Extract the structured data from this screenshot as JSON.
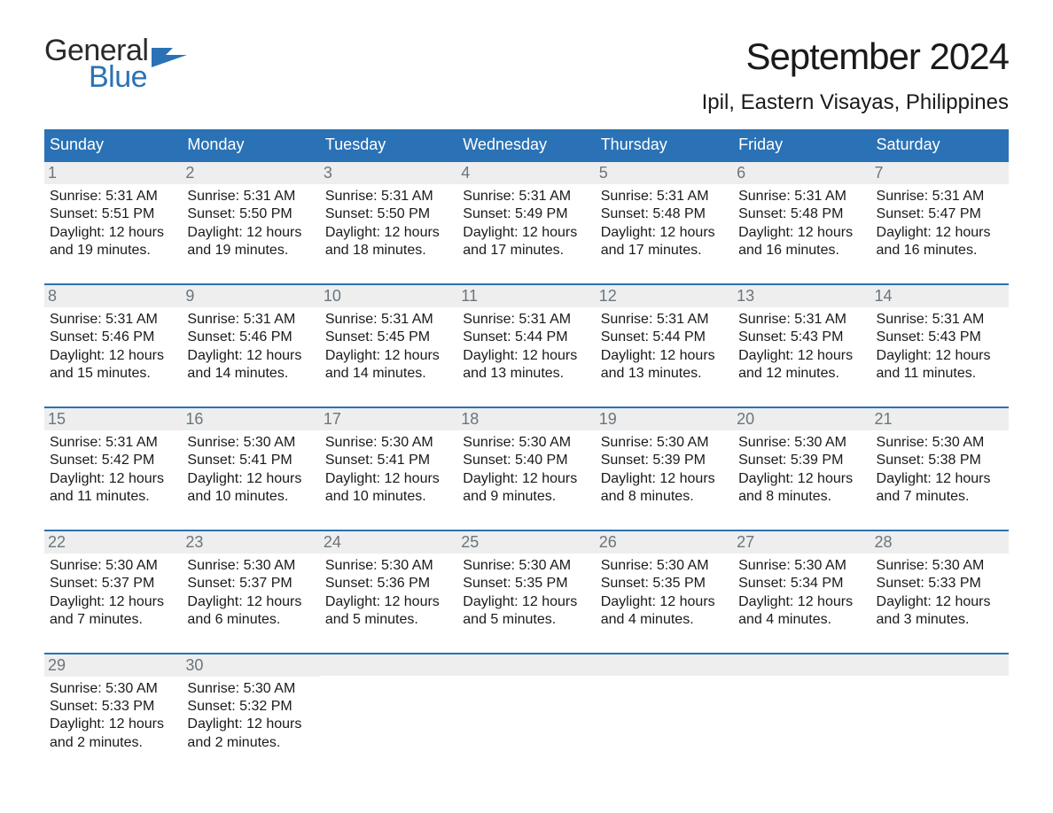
{
  "brand": {
    "line1": "General",
    "line2": "Blue",
    "accent_color": "#2a72b5",
    "text_color": "#2a2a2a"
  },
  "header": {
    "month_title": "September 2024",
    "location": "Ipil, Eastern Visayas, Philippines"
  },
  "calendar": {
    "type": "table",
    "header_bg": "#2a72b5",
    "header_fg": "#ffffff",
    "row_accent": "#2a72b5",
    "daynum_bg": "#eeeeee",
    "daynum_fg": "#6a757d",
    "body_fg": "#1a1a1a",
    "background_color": "#ffffff",
    "header_fontsize": 18,
    "daynum_fontsize": 18,
    "body_fontsize": 16,
    "columns": [
      "Sunday",
      "Monday",
      "Tuesday",
      "Wednesday",
      "Thursday",
      "Friday",
      "Saturday"
    ],
    "weeks": [
      [
        {
          "day": "1",
          "sunrise": "Sunrise: 5:31 AM",
          "sunset": "Sunset: 5:51 PM",
          "dl1": "Daylight: 12 hours",
          "dl2": "and 19 minutes."
        },
        {
          "day": "2",
          "sunrise": "Sunrise: 5:31 AM",
          "sunset": "Sunset: 5:50 PM",
          "dl1": "Daylight: 12 hours",
          "dl2": "and 19 minutes."
        },
        {
          "day": "3",
          "sunrise": "Sunrise: 5:31 AM",
          "sunset": "Sunset: 5:50 PM",
          "dl1": "Daylight: 12 hours",
          "dl2": "and 18 minutes."
        },
        {
          "day": "4",
          "sunrise": "Sunrise: 5:31 AM",
          "sunset": "Sunset: 5:49 PM",
          "dl1": "Daylight: 12 hours",
          "dl2": "and 17 minutes."
        },
        {
          "day": "5",
          "sunrise": "Sunrise: 5:31 AM",
          "sunset": "Sunset: 5:48 PM",
          "dl1": "Daylight: 12 hours",
          "dl2": "and 17 minutes."
        },
        {
          "day": "6",
          "sunrise": "Sunrise: 5:31 AM",
          "sunset": "Sunset: 5:48 PM",
          "dl1": "Daylight: 12 hours",
          "dl2": "and 16 minutes."
        },
        {
          "day": "7",
          "sunrise": "Sunrise: 5:31 AM",
          "sunset": "Sunset: 5:47 PM",
          "dl1": "Daylight: 12 hours",
          "dl2": "and 16 minutes."
        }
      ],
      [
        {
          "day": "8",
          "sunrise": "Sunrise: 5:31 AM",
          "sunset": "Sunset: 5:46 PM",
          "dl1": "Daylight: 12 hours",
          "dl2": "and 15 minutes."
        },
        {
          "day": "9",
          "sunrise": "Sunrise: 5:31 AM",
          "sunset": "Sunset: 5:46 PM",
          "dl1": "Daylight: 12 hours",
          "dl2": "and 14 minutes."
        },
        {
          "day": "10",
          "sunrise": "Sunrise: 5:31 AM",
          "sunset": "Sunset: 5:45 PM",
          "dl1": "Daylight: 12 hours",
          "dl2": "and 14 minutes."
        },
        {
          "day": "11",
          "sunrise": "Sunrise: 5:31 AM",
          "sunset": "Sunset: 5:44 PM",
          "dl1": "Daylight: 12 hours",
          "dl2": "and 13 minutes."
        },
        {
          "day": "12",
          "sunrise": "Sunrise: 5:31 AM",
          "sunset": "Sunset: 5:44 PM",
          "dl1": "Daylight: 12 hours",
          "dl2": "and 13 minutes."
        },
        {
          "day": "13",
          "sunrise": "Sunrise: 5:31 AM",
          "sunset": "Sunset: 5:43 PM",
          "dl1": "Daylight: 12 hours",
          "dl2": "and 12 minutes."
        },
        {
          "day": "14",
          "sunrise": "Sunrise: 5:31 AM",
          "sunset": "Sunset: 5:43 PM",
          "dl1": "Daylight: 12 hours",
          "dl2": "and 11 minutes."
        }
      ],
      [
        {
          "day": "15",
          "sunrise": "Sunrise: 5:31 AM",
          "sunset": "Sunset: 5:42 PM",
          "dl1": "Daylight: 12 hours",
          "dl2": "and 11 minutes."
        },
        {
          "day": "16",
          "sunrise": "Sunrise: 5:30 AM",
          "sunset": "Sunset: 5:41 PM",
          "dl1": "Daylight: 12 hours",
          "dl2": "and 10 minutes."
        },
        {
          "day": "17",
          "sunrise": "Sunrise: 5:30 AM",
          "sunset": "Sunset: 5:41 PM",
          "dl1": "Daylight: 12 hours",
          "dl2": "and 10 minutes."
        },
        {
          "day": "18",
          "sunrise": "Sunrise: 5:30 AM",
          "sunset": "Sunset: 5:40 PM",
          "dl1": "Daylight: 12 hours",
          "dl2": "and 9 minutes."
        },
        {
          "day": "19",
          "sunrise": "Sunrise: 5:30 AM",
          "sunset": "Sunset: 5:39 PM",
          "dl1": "Daylight: 12 hours",
          "dl2": "and 8 minutes."
        },
        {
          "day": "20",
          "sunrise": "Sunrise: 5:30 AM",
          "sunset": "Sunset: 5:39 PM",
          "dl1": "Daylight: 12 hours",
          "dl2": "and 8 minutes."
        },
        {
          "day": "21",
          "sunrise": "Sunrise: 5:30 AM",
          "sunset": "Sunset: 5:38 PM",
          "dl1": "Daylight: 12 hours",
          "dl2": "and 7 minutes."
        }
      ],
      [
        {
          "day": "22",
          "sunrise": "Sunrise: 5:30 AM",
          "sunset": "Sunset: 5:37 PM",
          "dl1": "Daylight: 12 hours",
          "dl2": "and 7 minutes."
        },
        {
          "day": "23",
          "sunrise": "Sunrise: 5:30 AM",
          "sunset": "Sunset: 5:37 PM",
          "dl1": "Daylight: 12 hours",
          "dl2": "and 6 minutes."
        },
        {
          "day": "24",
          "sunrise": "Sunrise: 5:30 AM",
          "sunset": "Sunset: 5:36 PM",
          "dl1": "Daylight: 12 hours",
          "dl2": "and 5 minutes."
        },
        {
          "day": "25",
          "sunrise": "Sunrise: 5:30 AM",
          "sunset": "Sunset: 5:35 PM",
          "dl1": "Daylight: 12 hours",
          "dl2": "and 5 minutes."
        },
        {
          "day": "26",
          "sunrise": "Sunrise: 5:30 AM",
          "sunset": "Sunset: 5:35 PM",
          "dl1": "Daylight: 12 hours",
          "dl2": "and 4 minutes."
        },
        {
          "day": "27",
          "sunrise": "Sunrise: 5:30 AM",
          "sunset": "Sunset: 5:34 PM",
          "dl1": "Daylight: 12 hours",
          "dl2": "and 4 minutes."
        },
        {
          "day": "28",
          "sunrise": "Sunrise: 5:30 AM",
          "sunset": "Sunset: 5:33 PM",
          "dl1": "Daylight: 12 hours",
          "dl2": "and 3 minutes."
        }
      ],
      [
        {
          "day": "29",
          "sunrise": "Sunrise: 5:30 AM",
          "sunset": "Sunset: 5:33 PM",
          "dl1": "Daylight: 12 hours",
          "dl2": "and 2 minutes."
        },
        {
          "day": "30",
          "sunrise": "Sunrise: 5:30 AM",
          "sunset": "Sunset: 5:32 PM",
          "dl1": "Daylight: 12 hours",
          "dl2": "and 2 minutes."
        },
        null,
        null,
        null,
        null,
        null
      ]
    ]
  }
}
